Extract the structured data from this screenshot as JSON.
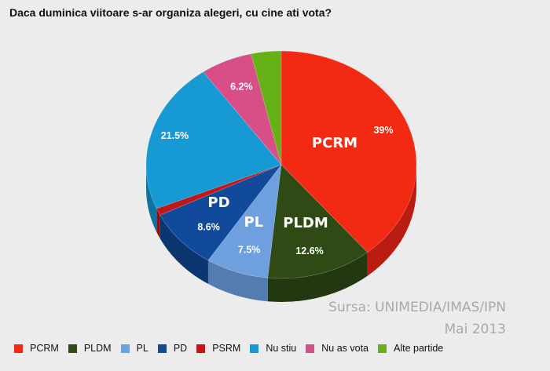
{
  "title": "Daca duminica viitoare s-ar organiza alegeri, cu cine ati vota?",
  "source_line1": "Sursa: UNIMEDIA/IMAS/IPN",
  "source_line2": "Mai 2013",
  "chart_data": {
    "type": "pie",
    "title": "Daca duminica viitoare s-ar organiza alegeri, cu cine ati vota?",
    "legend_position": "bottom",
    "slices": [
      {
        "name": "PCRM",
        "value": 39,
        "label": "39%",
        "party_label": "PCRM",
        "color": "#f22a14",
        "side_color": "#b91c10"
      },
      {
        "name": "PLDM",
        "value": 12.6,
        "label": "12.6%",
        "party_label": "PLDM",
        "color": "#2f4a14",
        "side_color": "#223810"
      },
      {
        "name": "PL",
        "value": 7.5,
        "label": "7.5%",
        "party_label": "PL",
        "color": "#6e9fde",
        "side_color": "#557cb0"
      },
      {
        "name": "PD",
        "value": 8.6,
        "label": "8.6%",
        "party_label": "PD",
        "color": "#114a9a",
        "side_color": "#0b3670"
      },
      {
        "name": "PSRM",
        "value": 1,
        "label": "",
        "party_label": "",
        "color": "#c0181a",
        "side_color": "#8e1214"
      },
      {
        "name": "Nu stiu",
        "value": 21.5,
        "label": "21.5%",
        "party_label": "",
        "color": "#1799d3",
        "side_color": "#0f73a0"
      },
      {
        "name": "Nu as vota",
        "value": 6.2,
        "label": "6.2%",
        "party_label": "",
        "color": "#d84e86",
        "side_color": "#a33a65"
      },
      {
        "name": "Alte partide",
        "value": 3.6,
        "label": "",
        "party_label": "",
        "color": "#66b118",
        "side_color": "#4c8511"
      }
    ]
  }
}
